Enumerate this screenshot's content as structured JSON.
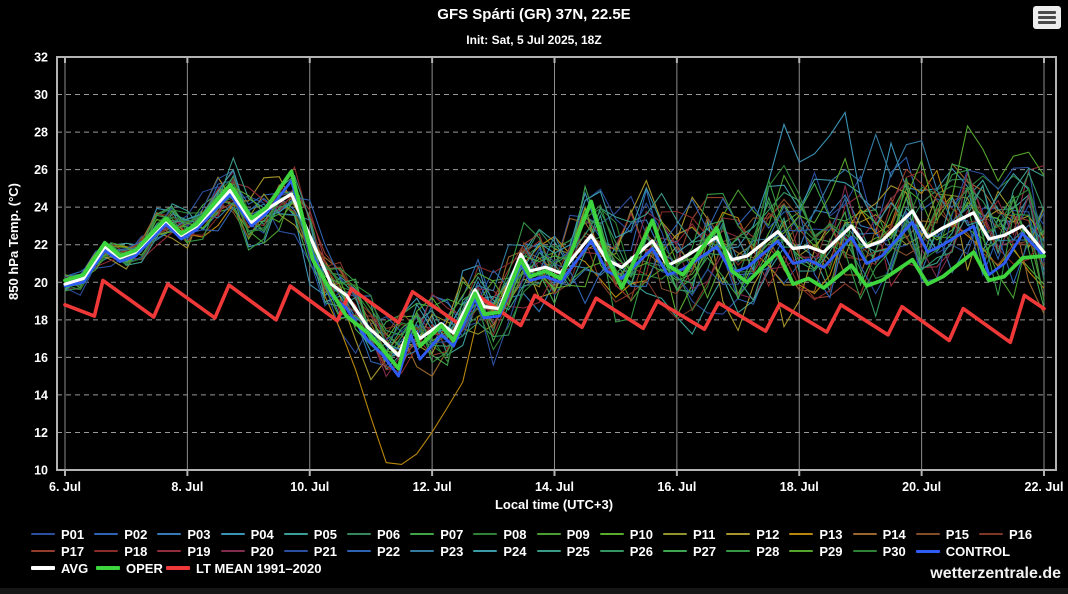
{
  "header": {
    "title": "GFS Spárti (GR) 37N, 22.5E",
    "subtitle": "Init: Sat, 5 Jul 2025, 18Z"
  },
  "menu": {
    "icon": "hamburger-menu-icon"
  },
  "watermark": "wetterzentrale.de",
  "chart_data": {
    "type": "line",
    "title": "GFS Spárti (GR) 37N, 22.5E",
    "subtitle": "Init: Sat, 5 Jul 2025, 18Z",
    "xlabel": "Local time (UTC+3)",
    "ylabel": "850 hPa Temp. (°C)",
    "xlim_days": [
      0,
      16
    ],
    "ylim": [
      10,
      32
    ],
    "background": "#000000",
    "axis_color": "#b3b3b3",
    "grid_color_h": "#999999",
    "grid_color_v": "#8c8c8c",
    "grid": {
      "horizontal": "dashed",
      "vertical": "solid"
    },
    "x_ticks": [
      {
        "t": 0,
        "label": "6. Jul"
      },
      {
        "t": 2,
        "label": "8. Jul"
      },
      {
        "t": 4,
        "label": "10. Jul"
      },
      {
        "t": 6,
        "label": "12. Jul"
      },
      {
        "t": 8,
        "label": "14. Jul"
      },
      {
        "t": 10,
        "label": "16. Jul"
      },
      {
        "t": 12,
        "label": "18. Jul"
      },
      {
        "t": 14,
        "label": "20. Jul"
      },
      {
        "t": 16,
        "label": "22. Jul"
      }
    ],
    "y_ticks": [
      10,
      12,
      14,
      16,
      18,
      20,
      22,
      24,
      26,
      28,
      30,
      32
    ],
    "series": [
      {
        "name": "LT MEAN 1991–2020",
        "color": "#ef3838",
        "width": 3.6,
        "points": [
          [
            0,
            18.8
          ],
          [
            0.48,
            18.2
          ],
          [
            0.62,
            20.1
          ],
          [
            1.45,
            18.15
          ],
          [
            1.68,
            19.9
          ],
          [
            2.45,
            18.1
          ],
          [
            2.68,
            19.85
          ],
          [
            3.45,
            18.0
          ],
          [
            3.68,
            19.8
          ],
          [
            4.45,
            17.95
          ],
          [
            4.68,
            19.65
          ],
          [
            5.45,
            17.85
          ],
          [
            5.68,
            19.5
          ],
          [
            6.45,
            17.75
          ],
          [
            6.68,
            19.45
          ],
          [
            7.45,
            17.7
          ],
          [
            7.68,
            19.3
          ],
          [
            8.45,
            17.6
          ],
          [
            8.68,
            19.15
          ],
          [
            9.45,
            17.55
          ],
          [
            9.68,
            19.0
          ],
          [
            10.45,
            17.5
          ],
          [
            10.68,
            18.9
          ],
          [
            11.45,
            17.4
          ],
          [
            11.68,
            18.85
          ],
          [
            12.45,
            17.35
          ],
          [
            12.68,
            18.8
          ],
          [
            13.45,
            17.2
          ],
          [
            13.68,
            18.7
          ],
          [
            14.45,
            16.9
          ],
          [
            14.68,
            18.6
          ],
          [
            15.45,
            16.8
          ],
          [
            15.68,
            19.3
          ],
          [
            16,
            18.6
          ]
        ]
      },
      {
        "name": "CONTROL",
        "color": "#2e5cf5",
        "width": 2.8,
        "points": [
          [
            0,
            19.8
          ],
          [
            0.3,
            20.0
          ],
          [
            0.65,
            21.7
          ],
          [
            0.9,
            21.1
          ],
          [
            1.15,
            21.4
          ],
          [
            1.65,
            23.1
          ],
          [
            1.9,
            22.3
          ],
          [
            2.15,
            22.8
          ],
          [
            2.7,
            24.7
          ],
          [
            3.05,
            23.0
          ],
          [
            3.3,
            23.7
          ],
          [
            3.7,
            25.4
          ],
          [
            4.05,
            21.5
          ],
          [
            4.35,
            19.3
          ],
          [
            4.6,
            18.6
          ],
          [
            4.95,
            16.9
          ],
          [
            5.2,
            16.1
          ],
          [
            5.45,
            15.0
          ],
          [
            5.65,
            17.2
          ],
          [
            5.8,
            15.9
          ],
          [
            6.15,
            17.2
          ],
          [
            6.35,
            16.6
          ],
          [
            6.7,
            19.1
          ],
          [
            6.85,
            18.1
          ],
          [
            7.1,
            18.2
          ],
          [
            7.45,
            21.0
          ],
          [
            7.6,
            20.1
          ],
          [
            7.85,
            20.3
          ],
          [
            8.1,
            20.0
          ],
          [
            8.6,
            22.2
          ],
          [
            8.85,
            20.6
          ],
          [
            9.1,
            20.2
          ],
          [
            9.6,
            21.8
          ],
          [
            9.85,
            20.4
          ],
          [
            10.1,
            20.7
          ],
          [
            10.65,
            21.9
          ],
          [
            10.9,
            20.5
          ],
          [
            11.15,
            20.8
          ],
          [
            11.65,
            22.2
          ],
          [
            11.9,
            21.0
          ],
          [
            12.15,
            21.2
          ],
          [
            12.4,
            20.8
          ],
          [
            12.85,
            22.4
          ],
          [
            13.1,
            21.0
          ],
          [
            13.35,
            21.4
          ],
          [
            13.85,
            23.2
          ],
          [
            14.1,
            21.6
          ],
          [
            14.35,
            22.0
          ],
          [
            14.85,
            23.0
          ],
          [
            15.1,
            20.4
          ],
          [
            15.35,
            21.0
          ],
          [
            15.65,
            22.6
          ],
          [
            16,
            21.4
          ]
        ]
      },
      {
        "name": "AVG",
        "color": "#ffffff",
        "width": 3.2,
        "points": [
          [
            0,
            19.9
          ],
          [
            0.3,
            20.2
          ],
          [
            0.65,
            21.9
          ],
          [
            0.9,
            21.3
          ],
          [
            1.15,
            21.6
          ],
          [
            1.65,
            23.3
          ],
          [
            1.9,
            22.5
          ],
          [
            2.15,
            23.0
          ],
          [
            2.7,
            24.9
          ],
          [
            3.05,
            23.2
          ],
          [
            3.3,
            23.9
          ],
          [
            3.7,
            24.7
          ],
          [
            4.05,
            22.1
          ],
          [
            4.35,
            19.9
          ],
          [
            4.6,
            19.3
          ],
          [
            4.95,
            17.6
          ],
          [
            5.2,
            16.9
          ],
          [
            5.45,
            16.1
          ],
          [
            5.65,
            17.7
          ],
          [
            5.8,
            17.0
          ],
          [
            6.15,
            17.8
          ],
          [
            6.35,
            17.3
          ],
          [
            6.7,
            19.6
          ],
          [
            6.85,
            18.7
          ],
          [
            7.1,
            18.6
          ],
          [
            7.45,
            21.5
          ],
          [
            7.6,
            20.6
          ],
          [
            7.85,
            20.8
          ],
          [
            8.1,
            20.5
          ],
          [
            8.6,
            22.5
          ],
          [
            8.85,
            21.2
          ],
          [
            9.1,
            20.8
          ],
          [
            9.6,
            22.2
          ],
          [
            9.85,
            20.9
          ],
          [
            10.1,
            21.3
          ],
          [
            10.65,
            22.4
          ],
          [
            10.9,
            21.2
          ],
          [
            11.15,
            21.4
          ],
          [
            11.65,
            22.7
          ],
          [
            11.9,
            21.8
          ],
          [
            12.15,
            21.9
          ],
          [
            12.4,
            21.6
          ],
          [
            12.85,
            23.0
          ],
          [
            13.1,
            21.9
          ],
          [
            13.35,
            22.2
          ],
          [
            13.85,
            23.8
          ],
          [
            14.1,
            22.4
          ],
          [
            14.35,
            22.9
          ],
          [
            14.85,
            23.7
          ],
          [
            15.1,
            22.3
          ],
          [
            15.35,
            22.5
          ],
          [
            15.65,
            23.0
          ],
          [
            16,
            21.6
          ]
        ]
      },
      {
        "name": "OPER",
        "color": "#3ed43e",
        "width": 3.8,
        "points": [
          [
            0,
            20.1
          ],
          [
            0.3,
            20.4
          ],
          [
            0.65,
            22.1
          ],
          [
            0.9,
            21.4
          ],
          [
            1.15,
            21.7
          ],
          [
            1.65,
            23.4
          ],
          [
            1.9,
            22.6
          ],
          [
            2.15,
            23.1
          ],
          [
            2.7,
            25.2
          ],
          [
            3.05,
            23.4
          ],
          [
            3.3,
            24.0
          ],
          [
            3.7,
            25.9
          ],
          [
            4.05,
            21.2
          ],
          [
            4.35,
            19.5
          ],
          [
            4.6,
            18.2
          ],
          [
            4.95,
            17.3
          ],
          [
            5.2,
            16.4
          ],
          [
            5.45,
            15.4
          ],
          [
            5.65,
            17.9
          ],
          [
            5.8,
            16.6
          ],
          [
            6.15,
            17.7
          ],
          [
            6.35,
            16.9
          ],
          [
            6.7,
            19.4
          ],
          [
            6.85,
            18.3
          ],
          [
            7.1,
            18.4
          ],
          [
            7.45,
            21.2
          ],
          [
            7.6,
            20.3
          ],
          [
            7.85,
            20.6
          ],
          [
            8.1,
            20.2
          ],
          [
            8.6,
            24.3
          ],
          [
            8.85,
            21.4
          ],
          [
            9.1,
            19.7
          ],
          [
            9.6,
            23.3
          ],
          [
            9.85,
            20.9
          ],
          [
            10.1,
            20.4
          ],
          [
            10.65,
            22.9
          ],
          [
            10.9,
            20.6
          ],
          [
            11.15,
            20.0
          ],
          [
            11.65,
            21.6
          ],
          [
            11.9,
            19.9
          ],
          [
            12.15,
            20.2
          ],
          [
            12.4,
            19.7
          ],
          [
            12.85,
            20.9
          ],
          [
            13.1,
            19.8
          ],
          [
            13.35,
            20.1
          ],
          [
            13.85,
            21.2
          ],
          [
            14.1,
            19.9
          ],
          [
            14.35,
            20.3
          ],
          [
            14.85,
            21.6
          ],
          [
            15.1,
            20.1
          ],
          [
            15.35,
            20.3
          ],
          [
            15.65,
            21.3
          ],
          [
            16,
            21.4
          ]
        ]
      }
    ],
    "ensemble_note": "30 perturbation members cluster near 20°C on 6 Jul, peak ~25-26.4°C on 8-9 Jul, crash to 12-18°C on 11-12 Jul (lowest outlier 12.0), then spread widely 16-29.8°C through 22 Jul",
    "ensemble_envelope": [
      [
        0,
        19.4,
        20.4
      ],
      [
        2.7,
        23.8,
        25.9
      ],
      [
        3.7,
        23.0,
        26.4
      ],
      [
        5.5,
        12.0,
        19.5
      ],
      [
        8.6,
        19.0,
        26.3
      ],
      [
        10.6,
        15.8,
        27.6
      ],
      [
        12.85,
        17.0,
        27.7
      ],
      [
        14.9,
        16.5,
        29.8
      ],
      [
        16,
        15.8,
        27.0
      ]
    ],
    "members": [
      {
        "name": "P01",
        "color": "#2a4f9e",
        "seed": 101,
        "bias": [
          0,
          0,
          1
        ]
      },
      {
        "name": "P02",
        "color": "#2d63b0",
        "seed": 102,
        "bias": [
          0,
          0,
          1
        ]
      },
      {
        "name": "P03",
        "color": "#357ab8",
        "seed": 103,
        "bias": [
          0,
          0,
          1
        ]
      },
      {
        "name": "P04",
        "color": "#3b93b5",
        "seed": 104,
        "bias": [
          2.6,
          12.6,
          2.4
        ]
      },
      {
        "name": "P05",
        "color": "#3b9f99",
        "seed": 105,
        "bias": [
          -2.5,
          10.6,
          1.5
        ]
      },
      {
        "name": "P06",
        "color": "#33875a",
        "seed": 106,
        "bias": [
          0,
          0,
          1
        ]
      },
      {
        "name": "P07",
        "color": "#3fa546",
        "seed": 107,
        "bias": [
          0,
          0,
          1
        ]
      },
      {
        "name": "P08",
        "color": "#2f8236",
        "seed": 108,
        "bias": [
          0,
          0,
          1
        ]
      },
      {
        "name": "P09",
        "color": "#4a9e30",
        "seed": 109,
        "bias": [
          0,
          0,
          1
        ]
      },
      {
        "name": "P10",
        "color": "#5aaa2e",
        "seed": 110,
        "bias": [
          0,
          0,
          1
        ]
      },
      {
        "name": "P11",
        "color": "#93932d",
        "seed": 111,
        "bias": [
          0,
          0,
          1
        ]
      },
      {
        "name": "P12",
        "color": "#a6942c",
        "seed": 112,
        "bias": [
          0,
          0,
          1
        ]
      },
      {
        "name": "P13",
        "color": "#b8860b",
        "seed": 113,
        "bias": [
          -4.3,
          5.6,
          1.3
        ]
      },
      {
        "name": "P14",
        "color": "#9a662b",
        "seed": 114,
        "bias": [
          0,
          0,
          1
        ]
      },
      {
        "name": "P15",
        "color": "#824d28",
        "seed": 115,
        "bias": [
          0,
          0,
          1
        ]
      },
      {
        "name": "P16",
        "color": "#803626",
        "seed": 116,
        "bias": [
          -2.2,
          9.5,
          2.0
        ]
      },
      {
        "name": "P17",
        "color": "#933d2c",
        "seed": 117,
        "bias": [
          0,
          0,
          1
        ]
      },
      {
        "name": "P18",
        "color": "#892c27",
        "seed": 118,
        "bias": [
          0,
          0,
          1
        ]
      },
      {
        "name": "P19",
        "color": "#912c3a",
        "seed": 119,
        "bias": [
          0,
          0,
          1
        ]
      },
      {
        "name": "P20",
        "color": "#802c4d",
        "seed": 120,
        "bias": [
          0,
          0,
          1
        ]
      },
      {
        "name": "P21",
        "color": "#2a4f9e",
        "seed": 121,
        "bias": [
          0,
          0,
          1
        ]
      },
      {
        "name": "P22",
        "color": "#2d63b0",
        "seed": 122,
        "bias": [
          0,
          0,
          1
        ]
      },
      {
        "name": "P23",
        "color": "#357ba1",
        "seed": 123,
        "bias": [
          3.0,
          13.4,
          1.6
        ]
      },
      {
        "name": "P24",
        "color": "#3b9aa8",
        "seed": 124,
        "bias": [
          2.6,
          10.8,
          1.8
        ]
      },
      {
        "name": "P25",
        "color": "#3b9a87",
        "seed": 125,
        "bias": [
          0,
          0,
          1
        ]
      },
      {
        "name": "P26",
        "color": "#359560",
        "seed": 126,
        "bias": [
          0,
          0,
          1
        ]
      },
      {
        "name": "P27",
        "color": "#3fa54e",
        "seed": 127,
        "bias": [
          0,
          0,
          1
        ]
      },
      {
        "name": "P28",
        "color": "#349845",
        "seed": 128,
        "bias": [
          0,
          0,
          1
        ]
      },
      {
        "name": "P29",
        "color": "#55a52d",
        "seed": 129,
        "bias": [
          5.3,
          14.9,
          1.2
        ]
      },
      {
        "name": "P30",
        "color": "#2e8236",
        "seed": 130,
        "bias": [
          0,
          0,
          1
        ]
      }
    ],
    "legend": {
      "row3_order": [
        "AVG",
        "OPER",
        "LT MEAN 1991–2020"
      ],
      "control_label": "CONTROL"
    }
  }
}
